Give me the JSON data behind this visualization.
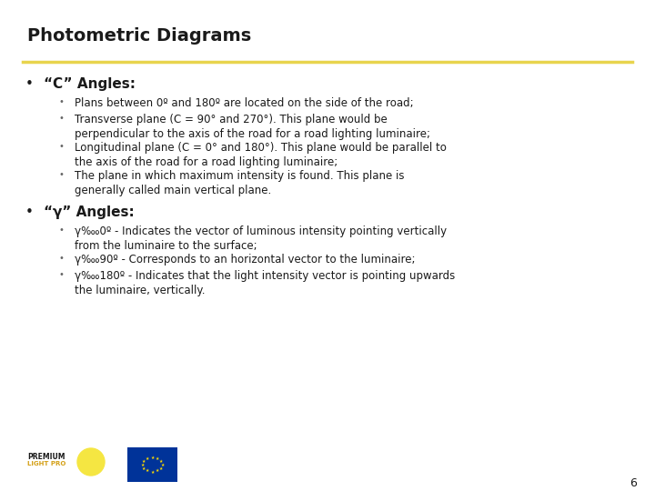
{
  "title": "Photometric Diagrams",
  "title_fontsize": 14,
  "title_fontweight": "bold",
  "bg_color": "#ffffff",
  "line_color": "#e8d44d",
  "section1_header": "“C” Angles:",
  "section1_bullets": [
    "Plans between 0º and 180º are located on the side of the road;",
    "Transverse plane (C = 90° and 270°). This plane would be\nperpendicular to the axis of the road for a road lighting luminaire;",
    "Longitudinal plane (C = 0° and 180°). This plane would be parallel to\nthe axis of the road for a road lighting luminaire;",
    "The plane in which maximum intensity is found. This plane is\ngenerally called main vertical plane."
  ],
  "section2_header": "“��angles:",
  "section2_header_display": "“γ” Angles:",
  "section2_bullets": [
    "γ‱0º - Indicates the vector of luminous intensity pointing vertically\nfrom the luminaire to the surface;",
    "γ‱90º - Corresponds to an horizontal vector to the luminaire;",
    "γ‱180º - Indicates that the light intensity vector is pointing upwards\nthe luminaire, vertically."
  ],
  "page_number": "6",
  "body_fontsize": 8.5,
  "header_fontsize": 11,
  "text_color": "#1a1a1a",
  "subbullet_color": "#666666"
}
